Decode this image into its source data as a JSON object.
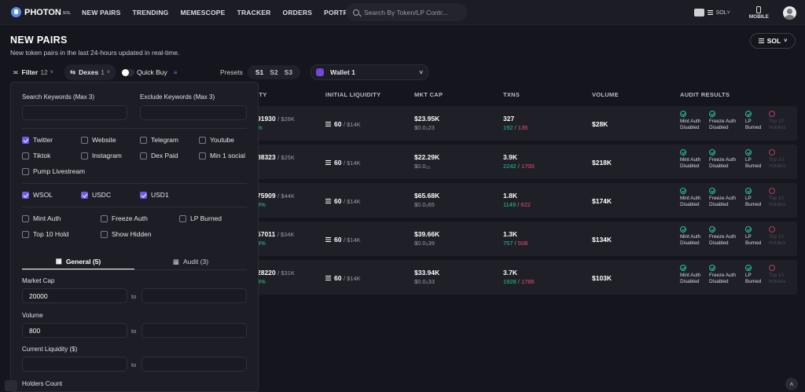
{
  "logo": {
    "name": "PHOTON",
    "sub": "SOL"
  },
  "nav": [
    "NEW PAIRS",
    "TRENDING",
    "MEMESCOPE",
    "TRACKER",
    "ORDERS",
    "PORTFOLIO"
  ],
  "search": {
    "placeholder": "Search By Token/LP Contr..."
  },
  "topright": {
    "sol": "SOL",
    "mobile": "MOBILE"
  },
  "page": {
    "title": "NEW PAIRS",
    "subtitle": "New token pairs in the last 24-hours updated in real-time.",
    "chain": "SOL"
  },
  "toolbar": {
    "filter": "Filter",
    "filter_count": "12",
    "dexes": "Dexes",
    "dexes_count": "1",
    "quick_buy": "Quick Buy",
    "presets_label": "Presets",
    "presets": [
      "S1",
      "S2",
      "S3"
    ],
    "wallet": "Wallet 1"
  },
  "table": {
    "headers": [
      "ITY",
      "INITIAL LIQUIDITY",
      "MKT CAP",
      "TXNS",
      "VOLUME",
      "AUDIT RESULTS"
    ],
    "rows": [
      {
        "liq_a": "91930",
        "liq_b": "/ $26K",
        "liq_pct": "%",
        "init_liq": "60",
        "init_liq_usd": "/ $14K",
        "mcap": "$23.95K",
        "mcap_sub": "$0.0₅23",
        "txns": "327",
        "buys": "192",
        "sells": "135",
        "volume": "$28K",
        "top10": "Top 10\nHolders"
      },
      {
        "liq_a": "88323",
        "liq_b": "/ $25K",
        "liq_pct": "",
        "init_liq": "60",
        "init_liq_usd": "/ $14K",
        "mcap": "$22.29K",
        "mcap_sub": "$0.0₂₂",
        "txns": "3.9K",
        "buys": "2242",
        "sells": "1700",
        "volume": "$218K",
        "top10": "Top 10\nHolders"
      },
      {
        "liq_a": "75909",
        "liq_b": "/ $44K",
        "liq_pct": "8%",
        "init_liq": "60",
        "init_liq_usd": "/ $14K",
        "mcap": "$65.68K",
        "mcap_sub": "$0.0₅65",
        "txns": "1.8K",
        "buys": "1149",
        "sells": "622",
        "volume": "$174K",
        "top10": "Top 10\nHolders"
      },
      {
        "liq_a": "57011",
        "liq_b": "/ $34K",
        "liq_pct": "3%",
        "init_liq": "60",
        "init_liq_usd": "/ $14K",
        "mcap": "$39.66K",
        "mcap_sub": "$0.0₅39",
        "txns": "1.3K",
        "buys": "757",
        "sells": "508",
        "volume": "$134K",
        "top10": "Top 10\nHolders"
      },
      {
        "liq_a": "28220",
        "liq_b": "/ $31K",
        "liq_pct": "3%",
        "init_liq": "60",
        "init_liq_usd": "/ $14K",
        "mcap": "$33.94K",
        "mcap_sub": "$0.0₅33",
        "txns": "3.7K",
        "buys": "1928",
        "sells": "1786",
        "volume": "$103K",
        "top10": "Top 10\nHolders"
      }
    ],
    "audit_labels": {
      "mint": "Mint Auth\nDisabled",
      "freeze": "Freeze Auth\nDisabled",
      "lp": "LP\nBurned"
    }
  },
  "filter_panel": {
    "search_kw": "Search Keywords (Max 3)",
    "exclude_kw": "Exclude Keywords (Max 3)",
    "socials": [
      "Twitter",
      "Website",
      "Telegram",
      "Youtube",
      "Tiktok",
      "Instagram",
      "Dex Paid",
      "Min 1 social",
      "Pump Livestream"
    ],
    "quote": [
      "WSOL",
      "USDC",
      "USD1"
    ],
    "audit": [
      "Mint Auth",
      "Freeze Auth",
      "LP Burned",
      "Top 10 Hold",
      "Show Hidden"
    ],
    "tab_general": "General (5)",
    "tab_audit": "Audit (3)",
    "market_cap": "Market Cap",
    "market_cap_from": "20000",
    "volume": "Volume",
    "volume_from": "800",
    "liquidity": "Current Liquidity ($)",
    "holders": "Holders Count",
    "to": "to"
  }
}
